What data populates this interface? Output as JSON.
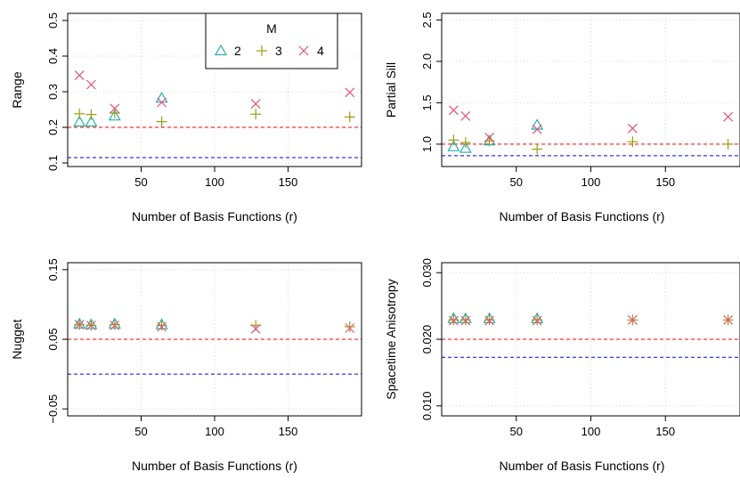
{
  "colors": {
    "m2": "#20B2AA",
    "m3": "#9AA00C",
    "m4": "#E8507A",
    "ref_red": "#FF0000",
    "ref_blue": "#0000FF",
    "grid": "#D9D9D9"
  },
  "legend": {
    "title": "M",
    "items": [
      {
        "label": "2",
        "symbol": "triangle",
        "color_key": "m2"
      },
      {
        "label": "3",
        "symbol": "plus",
        "color_key": "m3"
      },
      {
        "label": "4",
        "symbol": "cross",
        "color_key": "m4"
      }
    ]
  },
  "chart_data": [
    {
      "type": "scatter",
      "panel": "top-left",
      "xlabel": "Number of Basis Functions (r)",
      "ylabel": "Range",
      "xlim": [
        0,
        200
      ],
      "ylim": [
        0.09,
        0.52
      ],
      "xticks": [
        50,
        100,
        150
      ],
      "yticks": [
        0.1,
        0.2,
        0.3,
        0.4,
        0.5
      ],
      "ytick_labels": [
        "0.1",
        "0.2",
        "0.3",
        "0.4",
        "0.5"
      ],
      "grid": true,
      "legend_position": "top-right",
      "x": [
        8,
        16,
        32,
        64,
        128,
        192
      ],
      "series": [
        {
          "key": "m2",
          "symbol": "triangle",
          "values": [
            0.215,
            0.215,
            0.232,
            0.282,
            null,
            null
          ]
        },
        {
          "key": "m3",
          "symbol": "plus",
          "values": [
            0.238,
            0.236,
            0.24,
            0.216,
            0.237,
            0.229
          ]
        },
        {
          "key": "m4",
          "symbol": "cross",
          "values": [
            0.346,
            0.32,
            0.253,
            0.27,
            0.266,
            0.298
          ]
        }
      ],
      "hlines": [
        {
          "y": 0.2,
          "color_key": "ref_red"
        },
        {
          "y": 0.115,
          "color_key": "ref_blue"
        }
      ]
    },
    {
      "type": "scatter",
      "panel": "top-right",
      "xlabel": "Number of Basis Functions (r)",
      "ylabel": "Partial Sill",
      "xlim": [
        0,
        200
      ],
      "ylim": [
        0.73,
        2.58
      ],
      "xticks": [
        50,
        100,
        150
      ],
      "yticks": [
        1.0,
        1.5,
        2.0,
        2.5
      ],
      "ytick_labels": [
        "1.0",
        "1.5",
        "2.0",
        "2.5"
      ],
      "grid": true,
      "x": [
        8,
        16,
        32,
        64,
        128,
        192
      ],
      "series": [
        {
          "key": "m2",
          "symbol": "triangle",
          "values": [
            0.97,
            0.95,
            1.04,
            1.23,
            null,
            null
          ]
        },
        {
          "key": "m3",
          "symbol": "plus",
          "values": [
            1.05,
            1.02,
            1.04,
            0.94,
            1.03,
            1.0
          ]
        },
        {
          "key": "m4",
          "symbol": "cross",
          "values": [
            1.41,
            1.34,
            1.08,
            1.18,
            1.19,
            1.33
          ]
        }
      ],
      "hlines": [
        {
          "y": 1.0,
          "color_key": "ref_red"
        },
        {
          "y": 0.86,
          "color_key": "ref_blue"
        }
      ]
    },
    {
      "type": "scatter",
      "panel": "bottom-left",
      "xlabel": "Number of Basis Functions (r)",
      "ylabel": "Nugget",
      "xlim": [
        0,
        200
      ],
      "ylim": [
        -0.06,
        0.16
      ],
      "xticks": [
        50,
        100,
        150
      ],
      "yticks": [
        -0.05,
        0.05,
        0.15
      ],
      "ytick_labels": [
        "−0.05",
        "0.05",
        "0.15"
      ],
      "grid": true,
      "x": [
        8,
        16,
        32,
        64,
        128,
        192
      ],
      "series": [
        {
          "key": "m2",
          "symbol": "triangle",
          "values": [
            0.072,
            0.071,
            0.072,
            0.071,
            null,
            null
          ]
        },
        {
          "key": "m3",
          "symbol": "plus",
          "values": [
            0.071,
            0.07,
            0.071,
            0.07,
            0.07,
            0.068
          ]
        },
        {
          "key": "m4",
          "symbol": "cross",
          "values": [
            0.071,
            0.07,
            0.07,
            0.068,
            0.065,
            0.066
          ]
        }
      ],
      "hlines": [
        {
          "y": 0.05,
          "color_key": "ref_red"
        },
        {
          "y": 0.0,
          "color_key": "ref_blue"
        }
      ]
    },
    {
      "type": "scatter",
      "panel": "bottom-right",
      "xlabel": "Number of Basis Functions (r)",
      "ylabel": "Spacetime Anisotropy",
      "xlim": [
        0,
        200
      ],
      "ylim": [
        0.0085,
        0.0315
      ],
      "xticks": [
        50,
        100,
        150
      ],
      "yticks": [
        0.01,
        0.02,
        0.03
      ],
      "ytick_labels": [
        "0.010",
        "0.020",
        "0.030"
      ],
      "grid": true,
      "x": [
        8,
        16,
        32,
        64,
        128,
        192
      ],
      "series": [
        {
          "key": "m2",
          "symbol": "triangle",
          "values": [
            0.0231,
            0.0231,
            0.0231,
            0.0231,
            null,
            null
          ]
        },
        {
          "key": "m3",
          "symbol": "plus",
          "values": [
            0.0229,
            0.0229,
            0.0229,
            0.0229,
            0.0229,
            0.0229
          ]
        },
        {
          "key": "m4",
          "symbol": "cross",
          "values": [
            0.0228,
            0.0228,
            0.0228,
            0.0228,
            0.0229,
            0.0229
          ]
        }
      ],
      "hlines": [
        {
          "y": 0.02,
          "color_key": "ref_red"
        },
        {
          "y": 0.0173,
          "color_key": "ref_blue"
        }
      ]
    }
  ]
}
